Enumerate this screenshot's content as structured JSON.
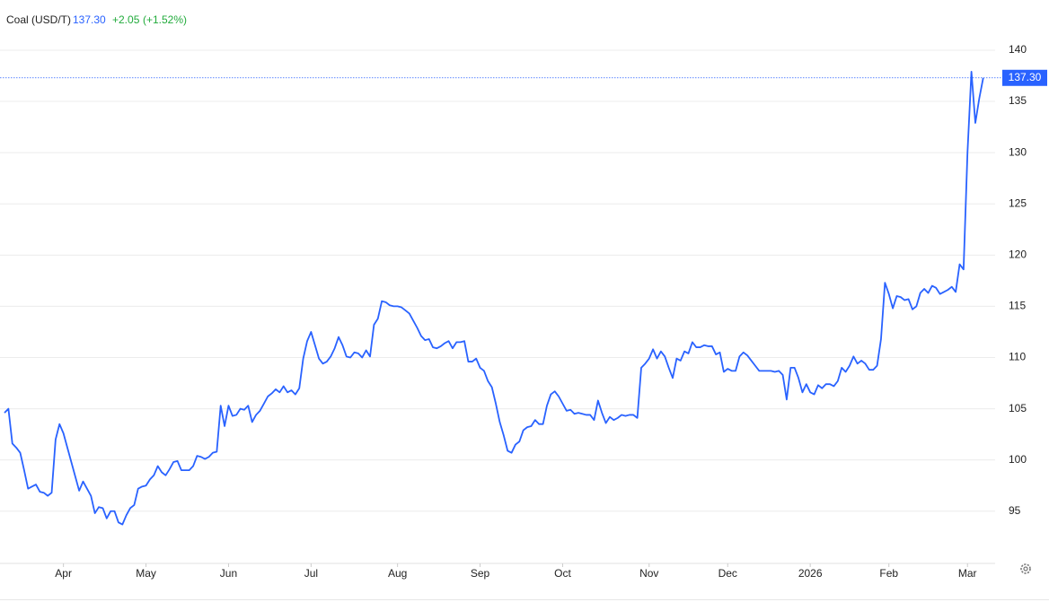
{
  "chart_data": {
    "type": "line",
    "name": "Coal (USD/T)",
    "last": "137.30",
    "change": "+2.05",
    "change_pct": "(+1.52%)",
    "color": "#2962ff",
    "series": [
      {
        "name": "Coal (USD/T)",
        "color": "#2962ff",
        "values": [
          104.6,
          105.0,
          101.6,
          101.2,
          100.7,
          99.0,
          97.2,
          97.4,
          97.6,
          96.9,
          96.8,
          96.5,
          96.8,
          102.0,
          103.5,
          102.6,
          101.2,
          99.8,
          98.4,
          97.0,
          97.9,
          97.2,
          96.5,
          94.8,
          95.4,
          95.3,
          94.3,
          95.0,
          95.0,
          93.9,
          93.7,
          94.6,
          95.3,
          95.6,
          97.2,
          97.4,
          97.5,
          98.1,
          98.5,
          99.4,
          98.8,
          98.5,
          99.1,
          99.8,
          99.9,
          99.0,
          99.0,
          99.0,
          99.4,
          100.4,
          100.3,
          100.1,
          100.3,
          100.7,
          100.8,
          105.3,
          103.3,
          105.3,
          104.3,
          104.4,
          105.0,
          104.9,
          105.3,
          103.7,
          104.4,
          104.8,
          105.5,
          106.2,
          106.5,
          106.9,
          106.6,
          107.2,
          106.6,
          106.8,
          106.4,
          107.0,
          109.9,
          111.6,
          112.5,
          111.2,
          109.9,
          109.4,
          109.6,
          110.1,
          110.9,
          112.0,
          111.2,
          110.1,
          110.0,
          110.5,
          110.4,
          110.0,
          110.7,
          110.1,
          113.2,
          113.8,
          115.5,
          115.4,
          115.1,
          115.0,
          115.0,
          114.9,
          114.6,
          114.3,
          113.6,
          112.9,
          112.1,
          111.7,
          111.8,
          111.0,
          110.9,
          111.1,
          111.4,
          111.6,
          110.9,
          111.5,
          111.5,
          111.6,
          109.6,
          109.6,
          109.9,
          109.0,
          108.7,
          107.7,
          107.1,
          105.5,
          103.7,
          102.4,
          100.9,
          100.7,
          101.5,
          101.8,
          102.9,
          103.2,
          103.3,
          103.9,
          103.5,
          103.5,
          105.3,
          106.4,
          106.7,
          106.2,
          105.5,
          104.8,
          104.9,
          104.5,
          104.6,
          104.5,
          104.4,
          104.4,
          103.9,
          105.8,
          104.6,
          103.6,
          104.2,
          103.9,
          104.1,
          104.4,
          104.3,
          104.4,
          104.4,
          104.1,
          109.0,
          109.4,
          109.9,
          110.8,
          109.9,
          110.6,
          110.1,
          109.0,
          108.0,
          109.9,
          109.7,
          110.6,
          110.4,
          111.5,
          111.0,
          111.0,
          111.2,
          111.1,
          111.1,
          110.3,
          110.5,
          108.6,
          108.9,
          108.7,
          108.7,
          110.1,
          110.5,
          110.2,
          109.7,
          109.2,
          108.7,
          108.7,
          108.7,
          108.7,
          108.6,
          108.7,
          108.3,
          105.9,
          109.0,
          109.0,
          108.0,
          106.6,
          107.4,
          106.6,
          106.4,
          107.3,
          107.0,
          107.4,
          107.4,
          107.2,
          107.7,
          109.0,
          108.6,
          109.2,
          110.1,
          109.4,
          109.7,
          109.4,
          108.8,
          108.8,
          109.2,
          111.8,
          117.3,
          116.2,
          114.8,
          116.0,
          115.9,
          115.6,
          115.7,
          114.7,
          115.0,
          116.3,
          116.7,
          116.3,
          117.0,
          116.8,
          116.2,
          116.4,
          116.6,
          116.9,
          116.4,
          119.1,
          118.6,
          130.0,
          137.9,
          132.9,
          135.3,
          137.3
        ]
      }
    ],
    "xlim": [
      0,
      251
    ],
    "xticks": [
      {
        "value": 15,
        "label": "Apr"
      },
      {
        "value": 36,
        "label": "May"
      },
      {
        "value": 57,
        "label": "Jun"
      },
      {
        "value": 78,
        "label": "Jul"
      },
      {
        "value": 100,
        "label": "Aug"
      },
      {
        "value": 121,
        "label": "Sep"
      },
      {
        "value": 142,
        "label": "Oct"
      },
      {
        "value": 164,
        "label": "Nov"
      },
      {
        "value": 184,
        "label": "Dec"
      },
      {
        "value": 205,
        "label": "2026"
      },
      {
        "value": 225,
        "label": "Feb"
      },
      {
        "value": 245,
        "label": "Mar"
      }
    ],
    "ylim": [
      89.9,
      144.9
    ],
    "yticks": [
      95,
      100,
      105,
      110,
      115,
      120,
      125,
      130,
      135,
      140
    ],
    "grid": true
  }
}
